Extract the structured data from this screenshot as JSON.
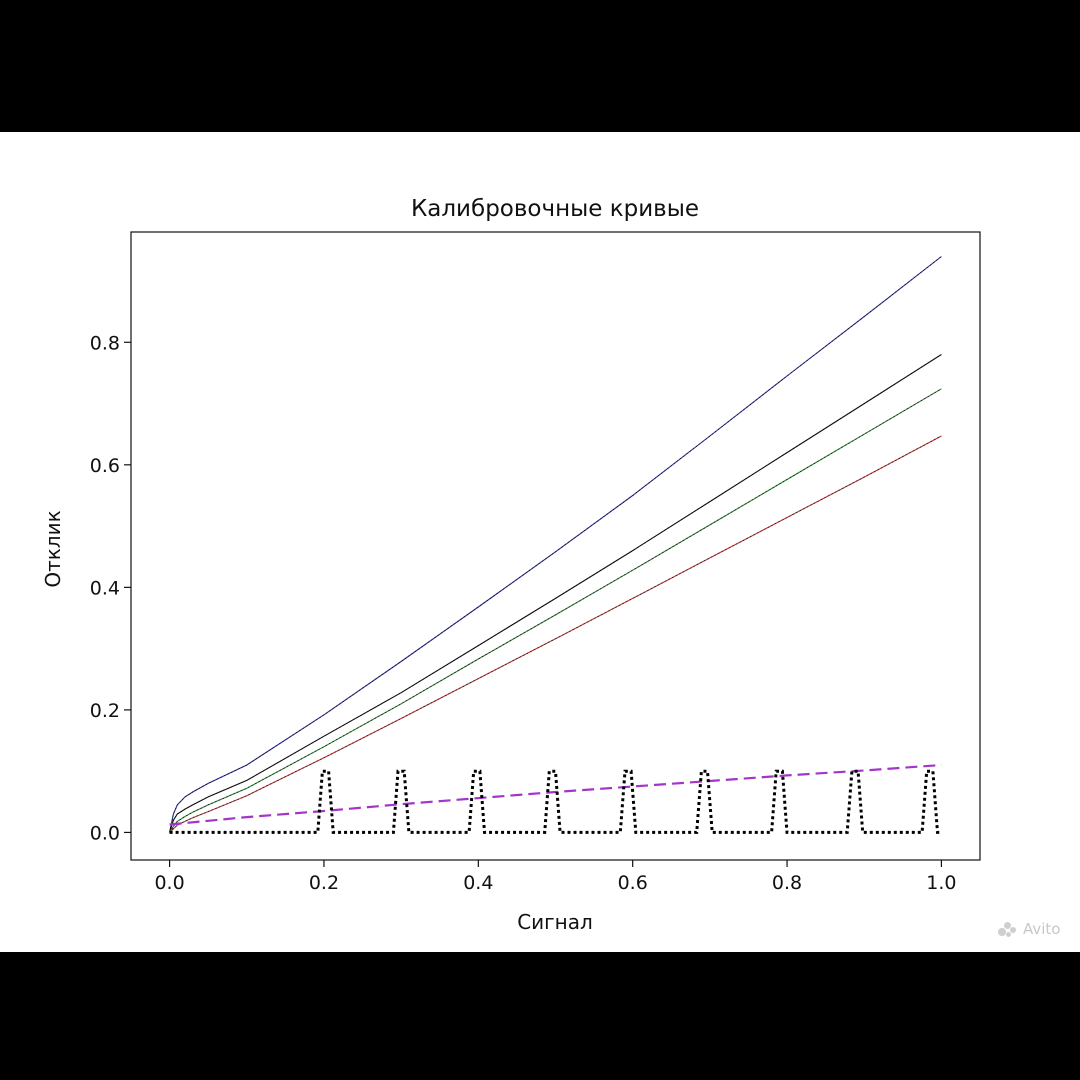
{
  "chart_data": {
    "type": "line",
    "title": "Калибровочные кривые",
    "xlabel": "Сигнал",
    "ylabel": "Отклик",
    "xlim": [
      -0.05,
      1.05
    ],
    "ylim": [
      -0.045,
      0.98
    ],
    "xticks": [
      "0.0",
      "0.2",
      "0.4",
      "0.6",
      "0.8",
      "1.0"
    ],
    "yticks": [
      "0.0",
      "0.2",
      "0.4",
      "0.6",
      "0.8"
    ],
    "grid": false,
    "legend": "none",
    "series": [
      {
        "color": "#2a2a8c",
        "style": "solid-dotted",
        "x": [
          0,
          0.005,
          0.01,
          0.02,
          0.03,
          0.05,
          0.1,
          0.2,
          0.3,
          0.4,
          0.5,
          0.6,
          0.7,
          0.8,
          0.9,
          1.0
        ],
        "y": [
          0,
          0.03,
          0.045,
          0.058,
          0.066,
          0.08,
          0.11,
          0.192,
          0.279,
          0.368,
          0.458,
          0.55,
          0.647,
          0.745,
          0.842,
          0.94
        ]
      },
      {
        "color": "#111111",
        "style": "solid-dotted",
        "x": [
          0,
          0.005,
          0.01,
          0.02,
          0.03,
          0.05,
          0.1,
          0.2,
          0.3,
          0.4,
          0.5,
          0.6,
          0.7,
          0.8,
          0.9,
          1.0
        ],
        "y": [
          0,
          0.02,
          0.03,
          0.038,
          0.045,
          0.058,
          0.085,
          0.157,
          0.228,
          0.305,
          0.382,
          0.46,
          0.54,
          0.62,
          0.7,
          0.78
        ]
      },
      {
        "color": "#2e7d32",
        "style": "solid-dotted",
        "x": [
          0,
          0.005,
          0.01,
          0.02,
          0.03,
          0.05,
          0.1,
          0.2,
          0.3,
          0.4,
          0.5,
          0.6,
          0.7,
          0.8,
          0.9,
          1.0
        ],
        "y": [
          0,
          0.01,
          0.018,
          0.026,
          0.033,
          0.045,
          0.072,
          0.14,
          0.21,
          0.283,
          0.355,
          0.428,
          0.502,
          0.576,
          0.65,
          0.724
        ]
      },
      {
        "color": "#b23a3a",
        "style": "solid-dotted",
        "x": [
          0,
          0.005,
          0.01,
          0.02,
          0.03,
          0.05,
          0.1,
          0.2,
          0.3,
          0.4,
          0.5,
          0.6,
          0.7,
          0.8,
          0.9,
          1.0
        ],
        "y": [
          0,
          0.006,
          0.012,
          0.018,
          0.024,
          0.034,
          0.06,
          0.122,
          0.186,
          0.251,
          0.316,
          0.382,
          0.448,
          0.514,
          0.58,
          0.647
        ]
      },
      {
        "color": "#a335c9",
        "style": "dashed",
        "x": [
          0,
          0.1,
          0.2,
          0.3,
          0.4,
          0.5,
          0.6,
          0.7,
          0.8,
          0.9,
          1.0
        ],
        "y": [
          0.013,
          0.025,
          0.035,
          0.046,
          0.056,
          0.066,
          0.075,
          0.084,
          0.093,
          0.101,
          0.11
        ]
      },
      {
        "color": "#000000",
        "style": "dotted-comb",
        "x": [
          0,
          0.192,
          0.198,
          0.2,
          0.206,
          0.212,
          0.29,
          0.296,
          0.298,
          0.304,
          0.31,
          0.388,
          0.394,
          0.396,
          0.402,
          0.408,
          0.486,
          0.492,
          0.494,
          0.5,
          0.506,
          0.584,
          0.59,
          0.592,
          0.598,
          0.604,
          0.683,
          0.689,
          0.691,
          0.697,
          0.703,
          0.78,
          0.786,
          0.788,
          0.794,
          0.8,
          0.878,
          0.884,
          0.886,
          0.892,
          0.898,
          0.975,
          0.981,
          0.983,
          0.989,
          0.995,
          1.0
        ],
        "y": [
          0,
          0,
          0.1,
          0.1,
          0.1,
          0,
          0,
          0.1,
          0.1,
          0.1,
          0,
          0,
          0.1,
          0.1,
          0.1,
          0,
          0,
          0.1,
          0.1,
          0.1,
          0,
          0,
          0.1,
          0.1,
          0.1,
          0,
          0,
          0.1,
          0.1,
          0.1,
          0,
          0,
          0.1,
          0.1,
          0.1,
          0,
          0,
          0.1,
          0.1,
          0.1,
          0,
          0,
          0.1,
          0.1,
          0.1,
          0,
          0
        ]
      }
    ]
  },
  "watermark": {
    "text": "Avito"
  }
}
